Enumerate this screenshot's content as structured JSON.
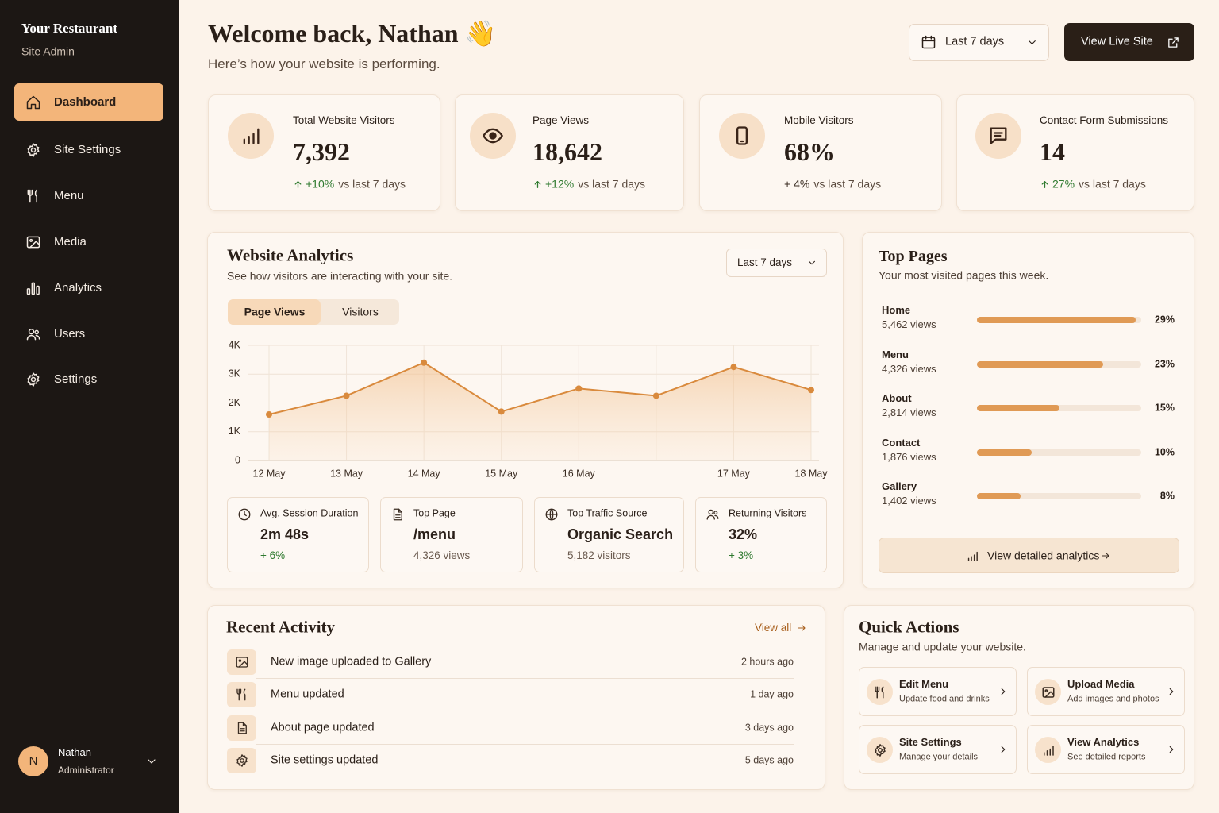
{
  "sidebar": {
    "brand": "Your Restaurant",
    "subtitle": "Site Admin",
    "nav": [
      "Dashboard",
      "Site Settings",
      "Menu",
      "Media",
      "Analytics",
      "Users",
      "Settings"
    ],
    "user": {
      "initial": "N",
      "name": "Nathan",
      "role": "Administrator"
    }
  },
  "header": {
    "title": "Welcome back, Nathan 👋",
    "subtitle": "Here’s how your website is performing.",
    "range": "Last 7 days",
    "button": "View Live Site"
  },
  "stats": [
    {
      "label": "Total Website Visitors",
      "value": "7,392",
      "change": "+10%",
      "note": "vs last 7 days",
      "color": "#2f7a2f"
    },
    {
      "label": "Page Views",
      "value": "18,642",
      "change": "+12%",
      "note": "vs last 7 days",
      "color": "#2f7a2f"
    },
    {
      "label": "Mobile Visitors",
      "value": "68%",
      "change": "+ 4%",
      "note": "vs last 7 days",
      "color": "#3a2c22"
    },
    {
      "label": "Contact Form Submissions",
      "value": "14",
      "change": "27%",
      "note": "vs last 7 days",
      "color": "#2f7a2f"
    }
  ],
  "analytics": {
    "title": "Website Analytics",
    "subtitle": "See how visitors are interacting with your site.",
    "range": "Last 7 days",
    "tabs": [
      "Page Views",
      "Visitors"
    ],
    "chart_data": {
      "type": "line",
      "categories": [
        "12 May",
        "13 May",
        "14 May",
        "15 May",
        "16 May",
        null,
        "17 May",
        "18 May"
      ],
      "series": [
        {
          "name": "Page Views",
          "color": "#d98a3d",
          "values": [
            1600,
            2250,
            3400,
            1700,
            2500,
            2250,
            3250,
            2450
          ]
        }
      ],
      "ylim": [
        0,
        4000
      ],
      "yticks": [
        0,
        {
          "value": 1000,
          "label": "1K"
        },
        {
          "value": 2000,
          "label": "2K"
        },
        {
          "value": 3000,
          "label": "3K"
        },
        {
          "value": 4000,
          "label": "4K"
        }
      ],
      "grid": true
    },
    "metrics": [
      {
        "label": "Avg. Session Duration",
        "value": "2m 48s",
        "sub": "+ 6%",
        "sub_color": "#2f7a2f"
      },
      {
        "label": "Top Page",
        "value": "/menu",
        "sub": "4,326 views",
        "sub_color": "#6b5b4f"
      },
      {
        "label": "Top Traffic Source",
        "value": "Organic Search",
        "sub": "5,182 visitors",
        "sub_color": "#6b5b4f"
      },
      {
        "label": "Returning Visitors",
        "value": "32%",
        "sub": "+ 3%",
        "sub_color": "#2f7a2f"
      }
    ]
  },
  "top_pages": {
    "title": "Top Pages",
    "subtitle": "Your most visited pages this week.",
    "views": [
      "5,462 views",
      "4,326 views",
      "2,814 views",
      "1,876 views",
      "1,402 views"
    ],
    "chart_data": {
      "type": "bar",
      "orientation": "horizontal",
      "categories": [
        "Home",
        "Menu",
        "About",
        "Contact",
        "Gallery"
      ],
      "values": [
        29,
        23,
        15,
        10,
        8
      ],
      "value_labels": [
        "29%",
        "23%",
        "15%",
        "10%",
        "8%"
      ],
      "xlim": [
        0,
        30
      ],
      "color": "#e09a55"
    },
    "link": "View detailed analytics"
  },
  "activity": {
    "title": "Recent Activity",
    "link": "View all",
    "items": [
      {
        "text": "New image uploaded to Gallery",
        "time": "2 hours ago"
      },
      {
        "text": "Menu updated",
        "time": "1 day ago"
      },
      {
        "text": "About page updated",
        "time": "3 days ago"
      },
      {
        "text": "Site settings updated",
        "time": "5 days ago"
      }
    ]
  },
  "quick_actions": {
    "title": "Quick Actions",
    "subtitle": "Manage and update your website.",
    "items": [
      {
        "title": "Edit Menu",
        "sub": "Update food and drinks"
      },
      {
        "title": "Upload Media",
        "sub": "Add images and photos"
      },
      {
        "title": "Site Settings",
        "sub": "Manage your details"
      },
      {
        "title": "View Analytics",
        "sub": "See detailed reports"
      }
    ]
  }
}
